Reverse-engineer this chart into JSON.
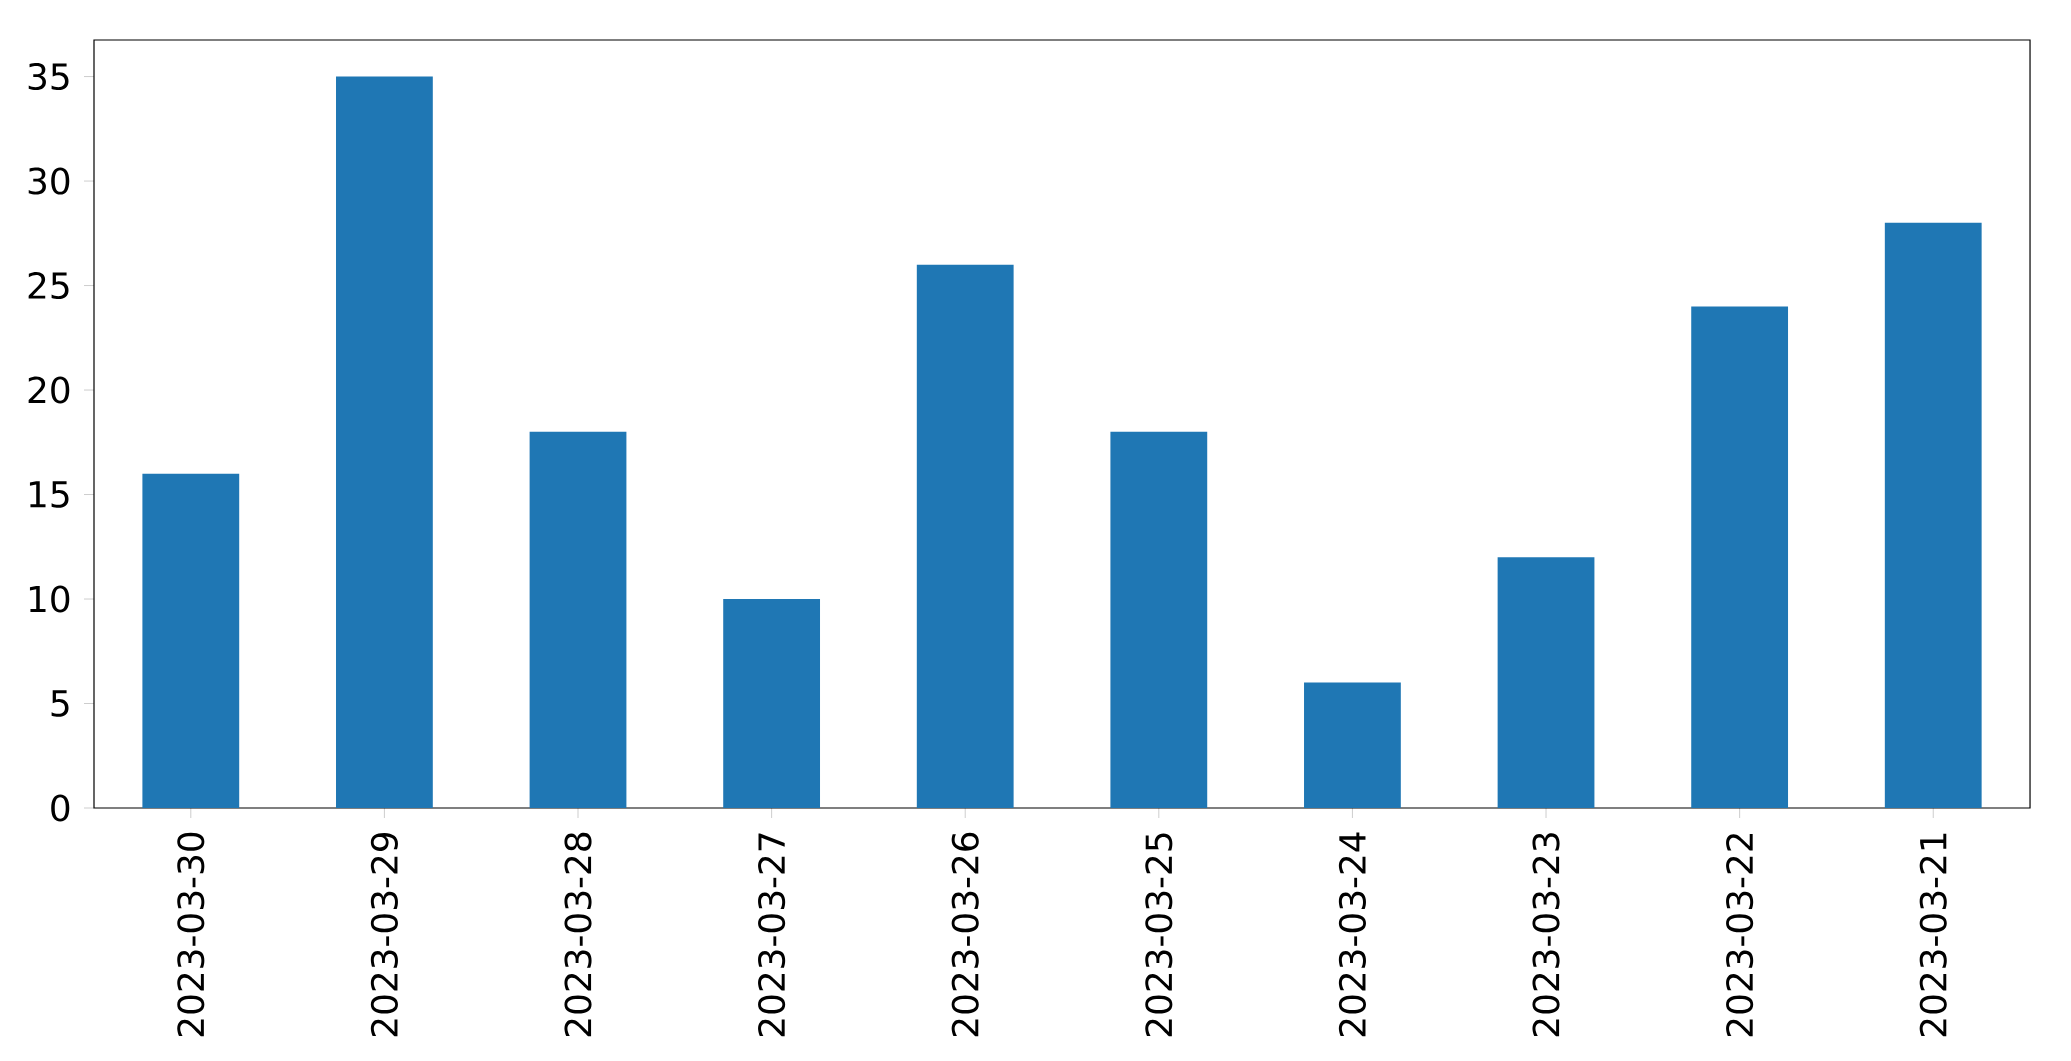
{
  "chart_data": {
    "type": "bar",
    "categories": [
      "2023-03-30",
      "2023-03-29",
      "2023-03-28",
      "2023-03-27",
      "2023-03-26",
      "2023-03-25",
      "2023-03-24",
      "2023-03-23",
      "2023-03-22",
      "2023-03-21"
    ],
    "values": [
      16,
      35,
      18,
      10,
      26,
      18,
      6,
      12,
      24,
      28
    ],
    "color": "#1f77b4",
    "ylim": [
      0,
      36.75
    ],
    "yticks": [
      0,
      5,
      10,
      15,
      20,
      25,
      30,
      35
    ]
  }
}
